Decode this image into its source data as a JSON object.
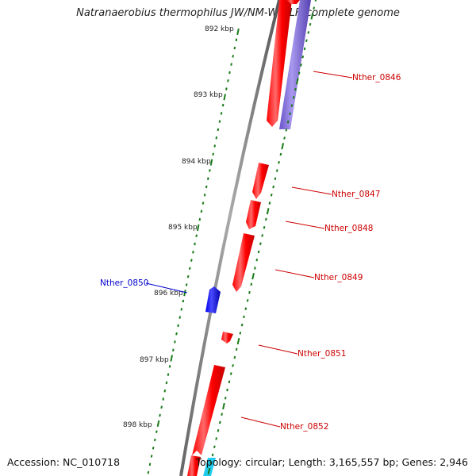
{
  "title": "Natranaerobius thermophilus JW/NM-WN-LF, complete genome",
  "accession": "Accession: NC_010718",
  "topology": "Topology: circular; Length: 3,165,557 bp; Genes: 2,946",
  "colors": {
    "forward_gene": "#ff0000",
    "forward_gene_highlight": "#ff8080",
    "reverse_gene": "#0000ee",
    "rna_band": "#7766cc",
    "cyan_feature": "#22ccee",
    "backbone": "#888888",
    "tick": "#1a7a1a",
    "label_forward": "#cc0000",
    "label_reverse": "#0000cc"
  },
  "scale_ticks": [
    {
      "label": "892 kbp"
    },
    {
      "label": "893 kbp"
    },
    {
      "label": "894 kbp"
    },
    {
      "label": "895 kbp"
    },
    {
      "label": "896 kbp"
    },
    {
      "label": "897 kbp"
    },
    {
      "label": "898 kbp"
    }
  ],
  "genes": [
    {
      "name": "Nther_0846",
      "strand": "forward"
    },
    {
      "name": "Nther_0847",
      "strand": "forward"
    },
    {
      "name": "Nther_0848",
      "strand": "forward"
    },
    {
      "name": "Nther_0849",
      "strand": "forward"
    },
    {
      "name": "Nther_0850",
      "strand": "reverse"
    },
    {
      "name": "Nther_0851",
      "strand": "forward"
    },
    {
      "name": "Nther_0852",
      "strand": "forward"
    }
  ]
}
